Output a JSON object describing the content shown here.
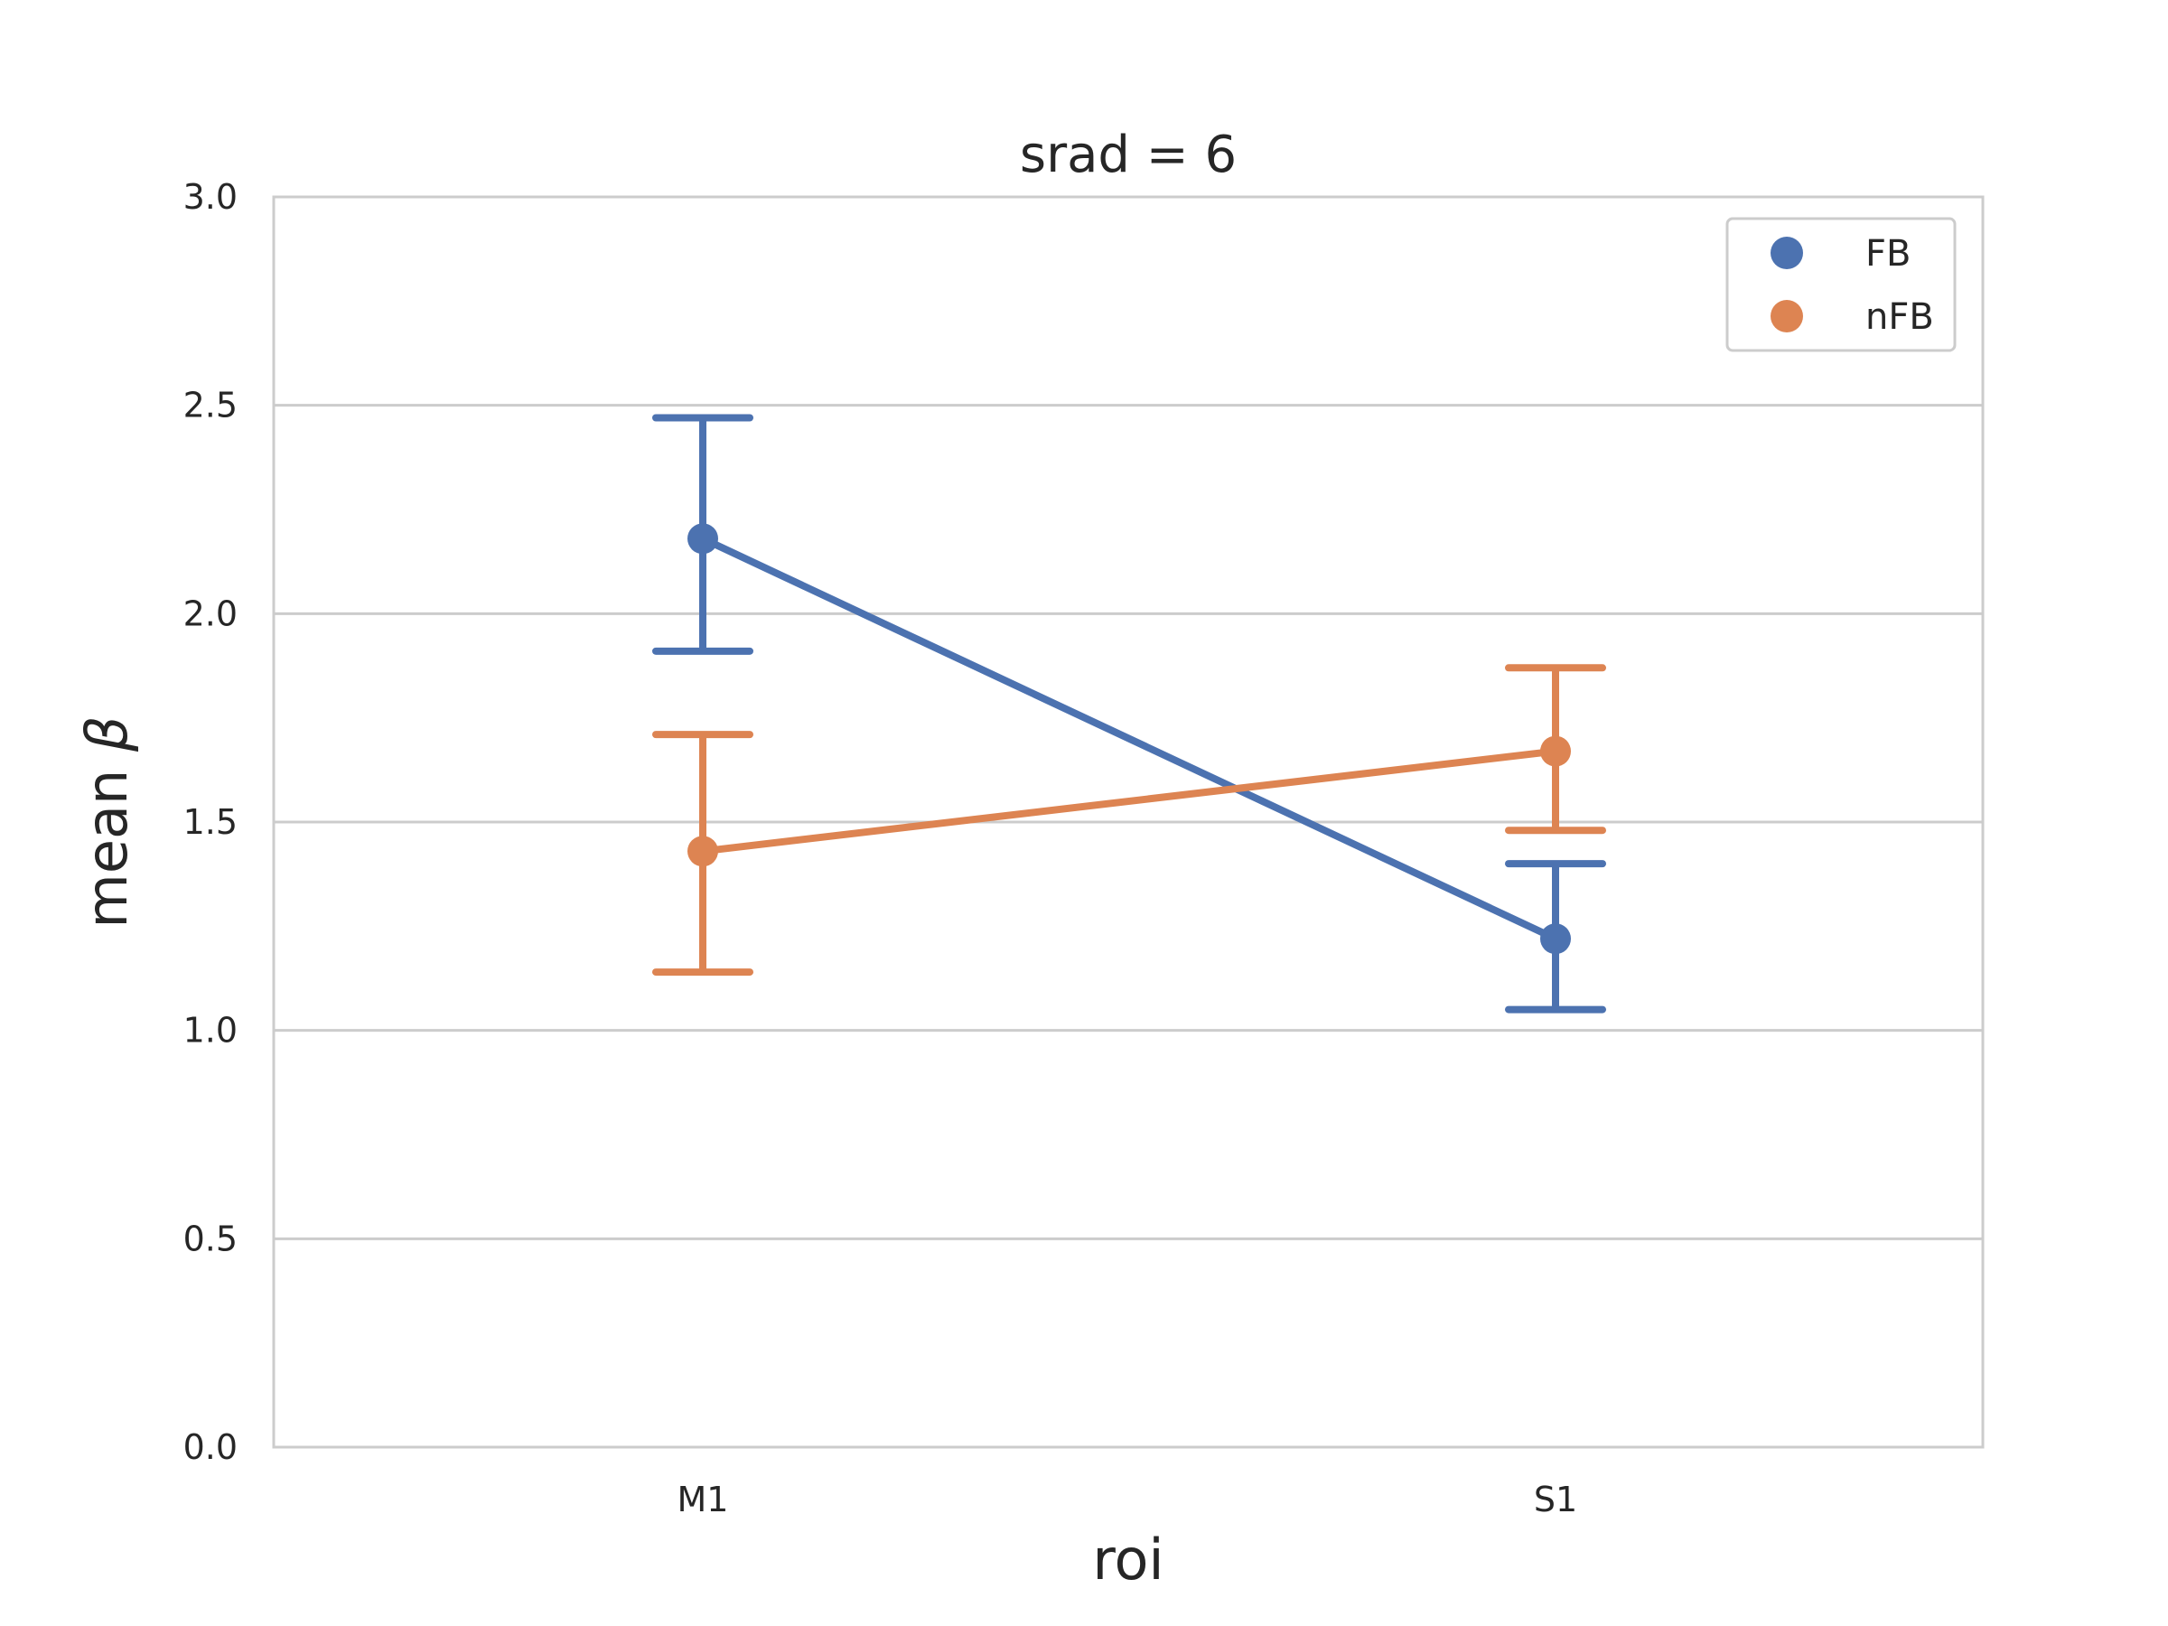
{
  "chart_data": {
    "type": "line",
    "title": "srad = 6",
    "xlabel": "roi",
    "ylabel": "mean β",
    "ylabel_parts": [
      "mean ",
      "β"
    ],
    "categories": [
      "M1",
      "S1"
    ],
    "ylim": [
      0.0,
      3.0
    ],
    "yticks": [
      "0.0",
      "0.5",
      "1.0",
      "1.5",
      "2.0",
      "2.5",
      "3.0"
    ],
    "grid": "horizontal",
    "legend_position": "top-right",
    "series": [
      {
        "name": "FB",
        "color": "#4c72b0",
        "values": [
          2.18,
          1.22
        ],
        "err_low": [
          1.91,
          1.05
        ],
        "err_high": [
          2.47,
          1.4
        ]
      },
      {
        "name": "nFB",
        "color": "#dd8452",
        "values": [
          1.43,
          1.67
        ],
        "err_low": [
          1.14,
          1.48
        ],
        "err_high": [
          1.71,
          1.87
        ]
      }
    ]
  }
}
